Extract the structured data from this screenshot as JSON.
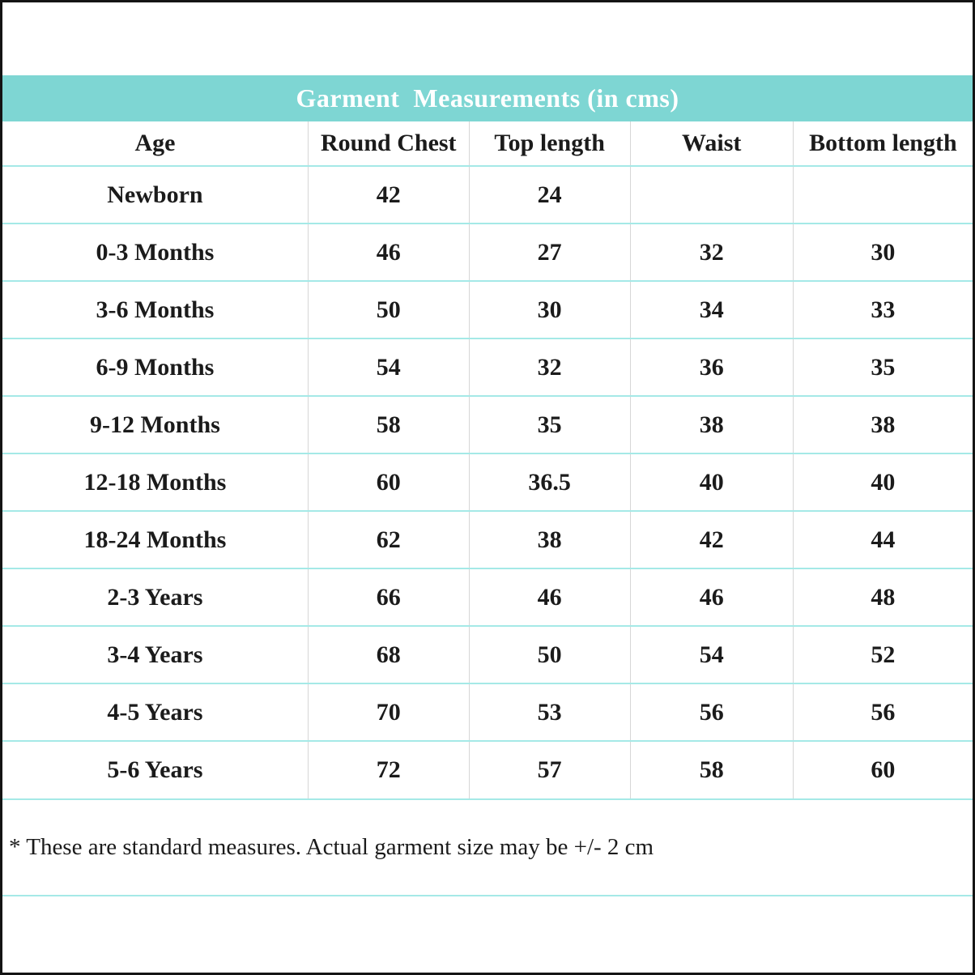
{
  "page": {
    "title": "Garment  Measurements (in cms)",
    "footnote": "* These are standard measures. Actual garment size may be +/- 2 cm"
  },
  "colors": {
    "band_bg": "#7ed6d3",
    "band_text": "#ffffff",
    "row_line": "#a5e9e7",
    "col_line": "#d6d6d6",
    "text": "#1b1b1b",
    "frame": "#141414"
  },
  "table": {
    "columns": [
      "Age",
      "Round Chest",
      "Top length",
      "Waist",
      "Bottom length"
    ],
    "rows": [
      {
        "age": "Newborn",
        "round_chest": "42",
        "top_length": "24",
        "waist": "",
        "bottom_length": ""
      },
      {
        "age": "0-3 Months",
        "round_chest": "46",
        "top_length": "27",
        "waist": "32",
        "bottom_length": "30"
      },
      {
        "age": "3-6 Months",
        "round_chest": "50",
        "top_length": "30",
        "waist": "34",
        "bottom_length": "33"
      },
      {
        "age": "6-9 Months",
        "round_chest": "54",
        "top_length": "32",
        "waist": "36",
        "bottom_length": "35"
      },
      {
        "age": "9-12 Months",
        "round_chest": "58",
        "top_length": "35",
        "waist": "38",
        "bottom_length": "38"
      },
      {
        "age": "12-18 Months",
        "round_chest": "60",
        "top_length": "36.5",
        "waist": "40",
        "bottom_length": "40"
      },
      {
        "age": "18-24 Months",
        "round_chest": "62",
        "top_length": "38",
        "waist": "42",
        "bottom_length": "44"
      },
      {
        "age": "2-3 Years",
        "round_chest": "66",
        "top_length": "46",
        "waist": "46",
        "bottom_length": "48"
      },
      {
        "age": "3-4 Years",
        "round_chest": "68",
        "top_length": "50",
        "waist": "54",
        "bottom_length": "52"
      },
      {
        "age": "4-5 Years",
        "round_chest": "70",
        "top_length": "53",
        "waist": "56",
        "bottom_length": "56"
      },
      {
        "age": "5-6 Years",
        "round_chest": "72",
        "top_length": "57",
        "waist": "58",
        "bottom_length": "60"
      }
    ]
  }
}
